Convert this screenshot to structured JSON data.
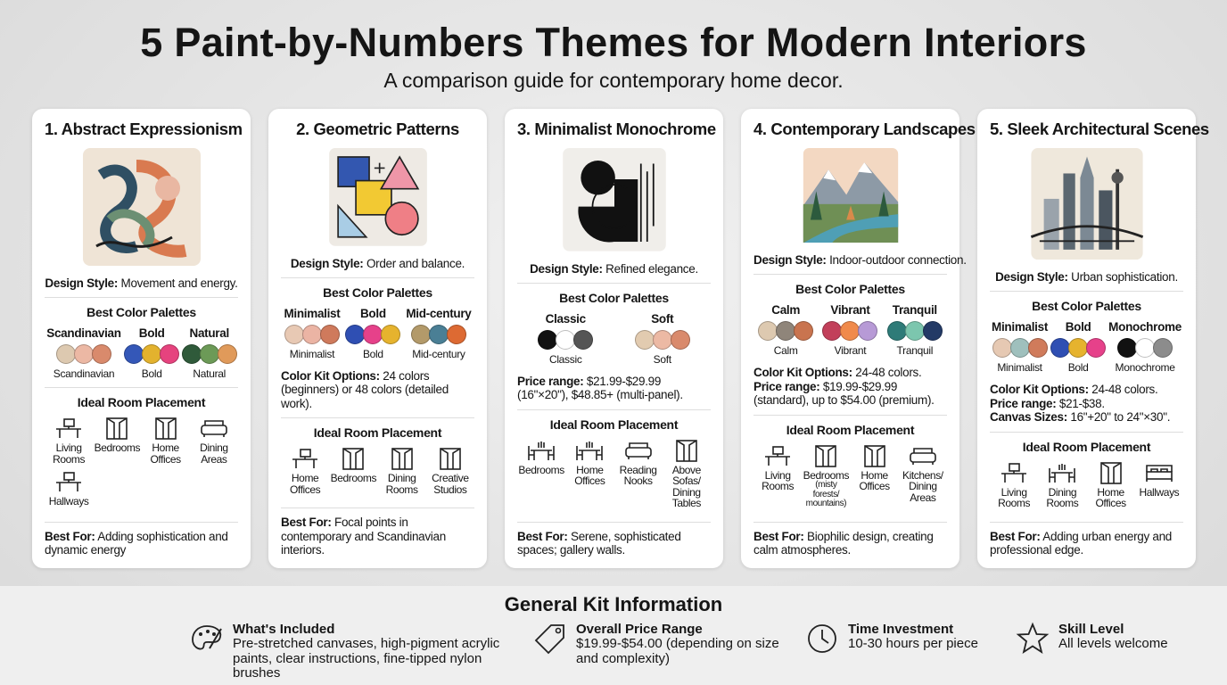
{
  "header": {
    "title": "5 Paint-by-Numbers Themes for Modern Interiors",
    "subtitle": "A comparison guide for contemporary home decor."
  },
  "cards": [
    {
      "title": "1. Abstract Expressionism",
      "design_label": "Design Style:",
      "design_text": "Movement and energy.",
      "palettes_heading": "Best Color Palettes",
      "palettes": [
        {
          "name": "Scandinavian",
          "colors": [
            "#ddc9b0",
            "#ecb8a4",
            "#d98a6c"
          ],
          "label": "Scandinavian"
        },
        {
          "name": "Bold",
          "colors": [
            "#3457b8",
            "#e3b22e",
            "#e6437e"
          ],
          "label": "Bold"
        },
        {
          "name": "Natural",
          "colors": [
            "#2f5a3a",
            "#6c9a57",
            "#e09a5a"
          ],
          "label": "Natural"
        }
      ],
      "kit_info": [],
      "room_heading": "Ideal Room Placement",
      "rooms": [
        {
          "name": "Living Rooms"
        },
        {
          "name": "Bedrooms"
        },
        {
          "name": "Home Offices"
        },
        {
          "name": "Dining Areas"
        },
        {
          "name": "Hallways"
        }
      ],
      "best_label": "Best For:",
      "best_text": "Adding sophistication and dynamic energy"
    },
    {
      "title": "2. Geometric Patterns",
      "design_label": "Design Style:",
      "design_text": "Order and balance.",
      "palettes_heading": "Best Color Palettes",
      "palettes": [
        {
          "name": "Minimalist",
          "colors": [
            "#e8c9b4",
            "#ebb4a4",
            "#cf7a5c"
          ],
          "label": "Minimalist"
        },
        {
          "name": "Bold",
          "colors": [
            "#2f4fb3",
            "#e6418a",
            "#e6b32e"
          ],
          "label": "Bold"
        },
        {
          "name": "Mid-century",
          "colors": [
            "#b39a6a",
            "#4a7f95",
            "#dd6a33"
          ],
          "label": "Mid-century"
        }
      ],
      "kit_info": [
        {
          "label": "Color Kit Options:",
          "text": "24 colors (beginners) or 48 colors (detailed work)."
        }
      ],
      "room_heading": "Ideal Room Placement",
      "rooms": [
        {
          "name": "Home Offices"
        },
        {
          "name": "Bedrooms"
        },
        {
          "name": "Dining Rooms"
        },
        {
          "name": "Creative Studios"
        }
      ],
      "best_label": "Best For:",
      "best_text": "Focal points in contemporary and Scandinavian interiors."
    },
    {
      "title": "3. Minimalist Monochrome",
      "design_label": "Design Style:",
      "design_text": "Refined elegance.",
      "palettes_heading": "Best Color Palettes",
      "palettes": [
        {
          "name": "Classic",
          "colors": [
            "#111111",
            "#ffffff",
            "#555555"
          ],
          "label": "Classic"
        },
        {
          "name": "Soft",
          "colors": [
            "#e2cbb0",
            "#ecb9a4",
            "#d98a6c"
          ],
          "label": "Soft"
        }
      ],
      "kit_info": [
        {
          "label": "Price range:",
          "text": "$21.99-$29.99 (16\"×20\"), $48.85+ (multi-panel)."
        }
      ],
      "room_heading": "Ideal Room Placement",
      "rooms": [
        {
          "name": "Bedrooms"
        },
        {
          "name": "Home Offices"
        },
        {
          "name": "Reading Nooks"
        },
        {
          "name": "Above Sofas/ Dining Tables"
        }
      ],
      "best_label": "Best For:",
      "best_text": "Serene, sophisticated spaces; gallery walls."
    },
    {
      "title": "4. Contemporary Landscapes",
      "design_label": "Design Style:",
      "design_text": "Indoor-outdoor connection.",
      "palettes_heading": "Best Color Palettes",
      "palettes": [
        {
          "name": "Calm",
          "colors": [
            "#ddc9b0",
            "#8f857a",
            "#c9744f"
          ],
          "label": "Calm"
        },
        {
          "name": "Vibrant",
          "colors": [
            "#c23f5a",
            "#f08a4b",
            "#b79ad6"
          ],
          "label": "Vibrant"
        },
        {
          "name": "Tranquil",
          "colors": [
            "#2e7b78",
            "#7cc6ae",
            "#233a66"
          ],
          "label": "Tranquil"
        }
      ],
      "kit_info": [
        {
          "label": "Color Kit Options:",
          "text": "24-48 colors."
        },
        {
          "label": "Price range:",
          "text": "$19.99-$29.99 (standard), up to $54.00 (premium)."
        }
      ],
      "room_heading": "Ideal Room Placement",
      "rooms": [
        {
          "name": "Living Rooms"
        },
        {
          "name": "Bedrooms",
          "note": "(misty forests/ mountains)"
        },
        {
          "name": "Home Offices"
        },
        {
          "name": "Kitchens/ Dining Areas"
        }
      ],
      "best_label": "Best For:",
      "best_text": "Biophilic design, creating calm atmospheres."
    },
    {
      "title": "5. Sleek Architectural Scenes",
      "design_label": "Design Style:",
      "design_text": "Urban sophistication.",
      "palettes_heading": "Best Color Palettes",
      "palettes": [
        {
          "name": "Minimalist",
          "colors": [
            "#e6c9b3",
            "#9fc0bd",
            "#d07b5b"
          ],
          "label": "Minimalist"
        },
        {
          "name": "Bold",
          "colors": [
            "#2f4fb3",
            "#e6b32e",
            "#e6418a"
          ],
          "label": "Bold"
        },
        {
          "name": "Monochrome",
          "colors": [
            "#111111",
            "#ffffff",
            "#8c8c8c"
          ],
          "label": "Monochrome"
        }
      ],
      "kit_info": [
        {
          "label": "Color Kit Options:",
          "text": "24-48 colors."
        },
        {
          "label": "Price range:",
          "text": "$21-$38."
        },
        {
          "label": "Canvas Sizes:",
          "text": "16\"+20\" to 24\"×30\"."
        }
      ],
      "room_heading": "Ideal Room Placement",
      "rooms": [
        {
          "name": "Living Rooms"
        },
        {
          "name": "Dining Rooms"
        },
        {
          "name": "Home Offices"
        },
        {
          "name": "Hallways"
        }
      ],
      "best_label": "Best For:",
      "best_text": "Adding urban energy and professional edge."
    }
  ],
  "footer": {
    "heading": "General Kit Information",
    "items": [
      {
        "label": "What's Included",
        "text": "Pre-stretched canvases, high-pigment acrylic paints, clear instructions, fine-tipped nylon brushes"
      },
      {
        "label": "Overall Price Range",
        "text": "$19.99-$54.00 (depending on size and complexity)"
      },
      {
        "label": "Time Investment",
        "text": "10-30 hours per piece"
      },
      {
        "label": "Skill Level",
        "text": "All levels welcome"
      }
    ]
  }
}
